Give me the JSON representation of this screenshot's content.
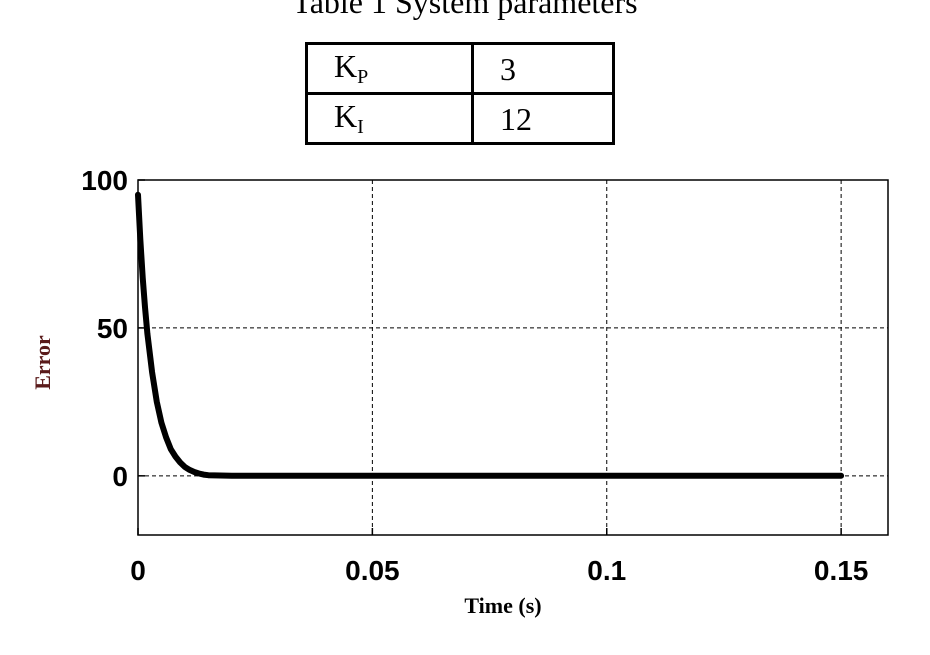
{
  "caption": "Table 1 System parameters",
  "params_table": {
    "rows": [
      {
        "symbol": "K",
        "sub": "P",
        "value": "3"
      },
      {
        "symbol": "K",
        "sub": "I",
        "value": "12"
      }
    ]
  },
  "chart_data": {
    "type": "line",
    "xlabel": "Time (s)",
    "ylabel": "Error",
    "xlim": [
      0,
      0.16
    ],
    "ylim": [
      -20,
      100
    ],
    "grid": true,
    "xticks": [
      0,
      0.05,
      0.1,
      0.15
    ],
    "xtick_labels": [
      "0",
      "0.05",
      "0.1",
      "0.15"
    ],
    "yticks": [
      0,
      50,
      100
    ],
    "ytick_labels": [
      "0",
      "50",
      "100"
    ],
    "series": [
      {
        "color": "#000000",
        "x": [
          0,
          0.0005,
          0.001,
          0.0015,
          0.002,
          0.003,
          0.004,
          0.005,
          0.006,
          0.007,
          0.008,
          0.009,
          0.01,
          0.011,
          0.012,
          0.013,
          0.014,
          0.015,
          0.02,
          0.05,
          0.1,
          0.15
        ],
        "y": [
          95,
          80,
          67,
          57,
          48,
          35,
          25,
          18,
          13,
          9,
          6.5,
          4.5,
          3,
          2,
          1.3,
          0.8,
          0.4,
          0.2,
          0,
          0,
          0,
          0
        ]
      }
    ]
  }
}
